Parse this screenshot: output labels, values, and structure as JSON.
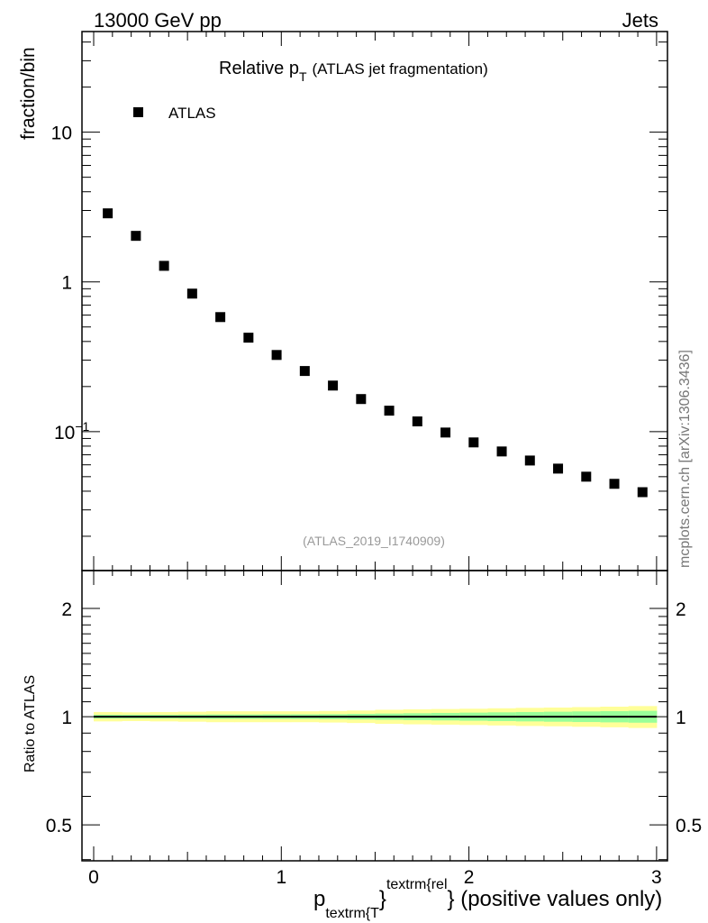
{
  "header": {
    "left": "13000 GeV pp",
    "right": "Jets"
  },
  "side_label": "mcplots.cern.ch [arXiv:1306.3436]",
  "watermark": "(ATLAS_2019_I1740909)",
  "chart_data": [
    {
      "type": "scatter",
      "title_main": "Relative p",
      "title_sub": "T",
      "title_rest": "(ATLAS jet fragmentation)",
      "ylabel": "fraction/bin",
      "yscale": "log",
      "ylim": [
        0.0118,
        47
      ],
      "xlim": [
        -0.06,
        3.06
      ],
      "y_ticks": [
        {
          "v": 10,
          "label": "10"
        },
        {
          "v": 1,
          "label": "1"
        },
        {
          "v": 0.1,
          "label": "10",
          "exp": "−1"
        }
      ],
      "legend": {
        "label": "ATLAS",
        "placement": "top-left"
      },
      "series": [
        {
          "name": "ATLAS",
          "color": "#000000",
          "x": [
            0.075,
            0.225,
            0.375,
            0.525,
            0.675,
            0.825,
            0.975,
            1.125,
            1.275,
            1.425,
            1.575,
            1.725,
            1.875,
            2.025,
            2.175,
            2.325,
            2.475,
            2.625,
            2.775,
            2.925
          ],
          "y": [
            2.87,
            2.03,
            1.28,
            0.835,
            0.582,
            0.424,
            0.325,
            0.254,
            0.203,
            0.165,
            0.138,
            0.117,
            0.0986,
            0.0847,
            0.0737,
            0.0641,
            0.0566,
            0.05,
            0.0448,
            0.0394
          ]
        }
      ]
    },
    {
      "type": "area",
      "ylabel": "Ratio to ATLAS",
      "yscale": "log",
      "ylim": [
        0.397,
        2.55
      ],
      "y_ticks": [
        {
          "v": 2,
          "label": "2"
        },
        {
          "v": 1,
          "label": "1"
        },
        {
          "v": 0.5,
          "label": "0.5"
        }
      ],
      "x_ticks": [
        {
          "v": 0,
          "label": "0"
        },
        {
          "v": 1,
          "label": "1"
        },
        {
          "v": 2,
          "label": "2"
        },
        {
          "v": 3,
          "label": "3"
        }
      ],
      "xlabel": {
        "p": "p",
        "sub": "textrm{T",
        "sup": "textrm{rel",
        "rest": "} (positive values only)",
        "brace": "}"
      },
      "bin_edges": [
        0,
        0.15,
        0.3,
        0.45,
        0.6,
        0.75,
        0.9,
        1.05,
        1.2,
        1.35,
        1.5,
        1.65,
        1.8,
        1.95,
        2.1,
        2.25,
        2.4,
        2.55,
        2.7,
        2.85,
        3.0
      ],
      "band_yellow": [
        0.03,
        0.028,
        0.03,
        0.032,
        0.035,
        0.035,
        0.035,
        0.035,
        0.037,
        0.04,
        0.045,
        0.048,
        0.05,
        0.052,
        0.055,
        0.058,
        0.06,
        0.063,
        0.066,
        0.07
      ],
      "band_green": [
        0.012,
        0.012,
        0.012,
        0.013,
        0.014,
        0.014,
        0.015,
        0.015,
        0.016,
        0.018,
        0.02,
        0.022,
        0.024,
        0.026,
        0.028,
        0.03,
        0.032,
        0.034,
        0.036,
        0.038
      ],
      "reference": 1,
      "colors": {
        "yellow": "#ffff99",
        "green": "#99ff99",
        "line": "#000000"
      }
    }
  ]
}
